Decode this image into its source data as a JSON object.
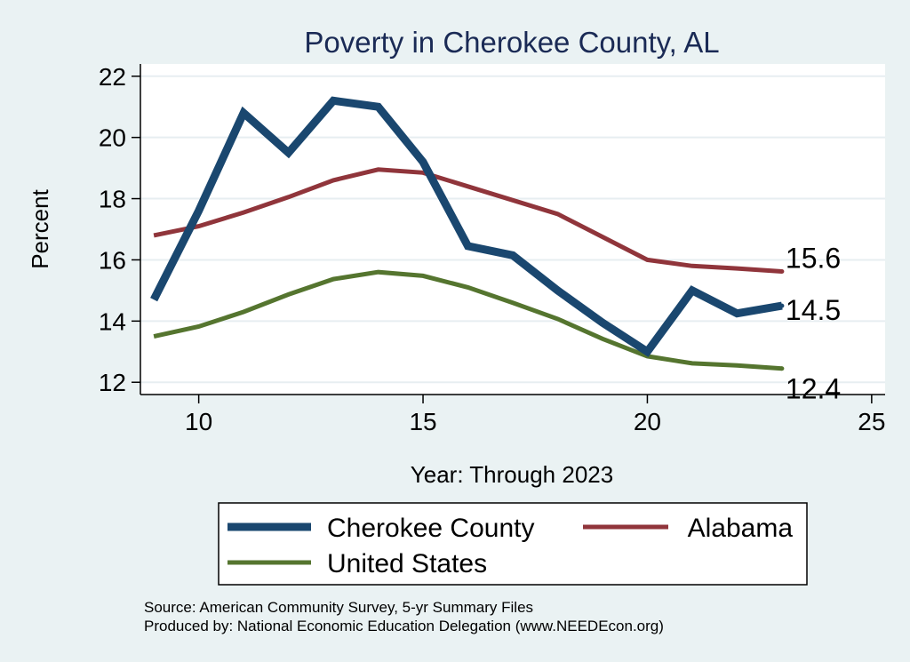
{
  "chart_data": {
    "type": "line",
    "title": "Poverty in Cherokee County, AL",
    "xlabel": "Year: Through 2023",
    "ylabel": "Percent",
    "xlim": [
      8.7,
      25.3
    ],
    "ylim": [
      11.6,
      22.4
    ],
    "x_ticks": [
      10,
      15,
      20,
      25
    ],
    "y_ticks": [
      12,
      14,
      16,
      18,
      20,
      22
    ],
    "grid": true,
    "x": [
      9,
      10,
      11,
      12,
      13,
      14,
      15,
      16,
      17,
      18,
      19,
      20,
      21,
      22,
      23
    ],
    "series": [
      {
        "name": "Cherokee County",
        "color": "#1a476f",
        "values": [
          14.7,
          17.6,
          20.8,
          19.5,
          21.2,
          21.0,
          19.2,
          16.45,
          16.15,
          15.0,
          13.95,
          13.0,
          15.0,
          14.25,
          14.5
        ]
      },
      {
        "name": "Alabama",
        "color": "#90353b",
        "values": [
          16.8,
          17.1,
          17.55,
          18.05,
          18.6,
          18.95,
          18.85,
          18.4,
          17.95,
          17.5,
          16.75,
          16.0,
          15.8,
          15.72,
          15.62
        ]
      },
      {
        "name": "United States",
        "color": "#55752f",
        "values": [
          13.5,
          13.82,
          14.3,
          14.87,
          15.37,
          15.6,
          15.48,
          15.1,
          14.6,
          14.07,
          13.42,
          12.85,
          12.62,
          12.55,
          12.45
        ]
      }
    ],
    "end_labels": [
      {
        "series": "Alabama",
        "text": "15.6"
      },
      {
        "series": "Cherokee County",
        "text": "14.5"
      },
      {
        "series": "United States",
        "text": "12.4"
      }
    ],
    "legend_position": "bottom"
  },
  "notes": {
    "source": "Source: American Community Survey, 5-yr Summary Files",
    "produced": "Produced by: National Economic Education Delegation (www.NEEDEcon.org)"
  }
}
